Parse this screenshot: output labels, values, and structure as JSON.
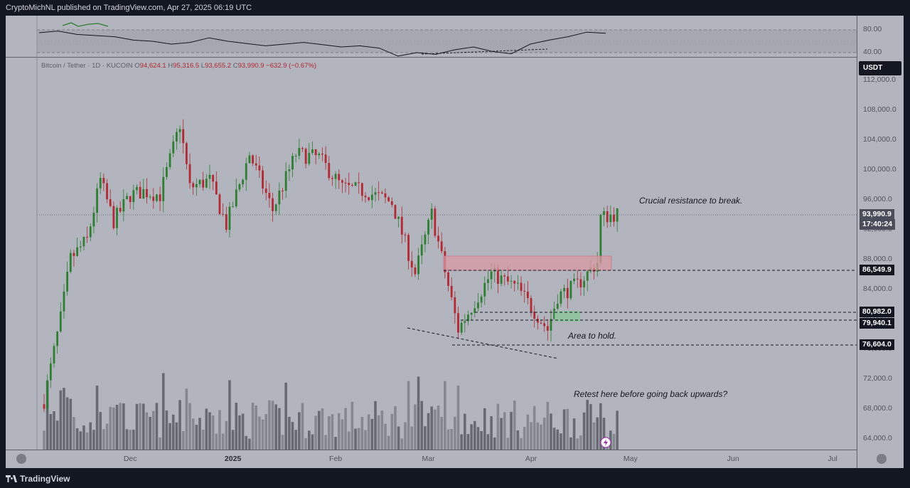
{
  "header": {
    "published": "CryptoMichNL published on TradingView.com, Apr 27, 2025 06:19 UTC"
  },
  "footer": {
    "brand": "TradingView"
  },
  "legend": {
    "symbol": "Bitcoin / Tether · 1D · KUCOIN",
    "o_label": "O",
    "o": "94,624.1",
    "h_label": "H",
    "h": "95,316.5",
    "l_label": "L",
    "l": "93,655.2",
    "c_label": "C",
    "c": "93,990.9",
    "change": "−632.9 (−0.67%)"
  },
  "quote_unit": "USDT",
  "current": {
    "price": "93,990.9",
    "countdown": "17:40:24"
  },
  "levels": [
    {
      "value": "86,549.9"
    },
    {
      "value": "80,982.0"
    },
    {
      "value": "79,940.1"
    },
    {
      "value": "76,604.0"
    }
  ],
  "annotations": {
    "resistance": "Crucial resistance to break.",
    "hold": "Area to hold.",
    "retest": "Retest here before going back upwards?"
  },
  "colors": {
    "up": "#26a69a",
    "down": "#ef5350",
    "candle_up": "#2e7d32",
    "candle_down": "#b22833",
    "resistance_zone": "#e8a0a8",
    "support_zone": "#8fc49a"
  },
  "chart_data": [
    {
      "type": "candlestick",
      "title": "Bitcoin / Tether · 1D · KUCOIN",
      "x_axis": {
        "ticks": [
          "Dec",
          "2025",
          "Feb",
          "Mar",
          "Apr",
          "May",
          "Jun",
          "Jul"
        ]
      },
      "y_axis": {
        "ticks": [
          "64,000.0",
          "68,000.0",
          "72,000.0",
          "76,000.0",
          "80,000.0",
          "84,000.0",
          "88,000.0",
          "92,000.0",
          "96,000.0",
          "100,000.0",
          "104,000.0",
          "108,000.0",
          "112,000.0"
        ],
        "range": [
          62000,
          114000
        ]
      },
      "closes_approx": [
        {
          "x": "2024-11-05",
          "y": 69000
        },
        {
          "x": "2024-11-10",
          "y": 80000
        },
        {
          "x": "2024-11-13",
          "y": 88000
        },
        {
          "x": "2024-11-18",
          "y": 90500
        },
        {
          "x": "2024-11-22",
          "y": 98500
        },
        {
          "x": "2024-11-26",
          "y": 93000
        },
        {
          "x": "2024-12-01",
          "y": 96500
        },
        {
          "x": "2024-12-05",
          "y": 97000
        },
        {
          "x": "2024-12-10",
          "y": 96500
        },
        {
          "x": "2024-12-16",
          "y": 106000
        },
        {
          "x": "2024-12-19",
          "y": 97500
        },
        {
          "x": "2024-12-25",
          "y": 98500
        },
        {
          "x": "2024-12-30",
          "y": 92500
        },
        {
          "x": "2025-01-06",
          "y": 102000
        },
        {
          "x": "2025-01-13",
          "y": 94500
        },
        {
          "x": "2025-01-20",
          "y": 102000
        },
        {
          "x": "2025-01-27",
          "y": 101500
        },
        {
          "x": "2025-02-03",
          "y": 97500
        },
        {
          "x": "2025-02-10",
          "y": 97000
        },
        {
          "x": "2025-02-18",
          "y": 95500
        },
        {
          "x": "2025-02-25",
          "y": 86000
        },
        {
          "x": "2025-03-02",
          "y": 94000
        },
        {
          "x": "2025-03-10",
          "y": 78500
        },
        {
          "x": "2025-03-20",
          "y": 86000
        },
        {
          "x": "2025-03-28",
          "y": 84000
        },
        {
          "x": "2025-04-06",
          "y": 78500
        },
        {
          "x": "2025-04-09",
          "y": 83000
        },
        {
          "x": "2025-04-15",
          "y": 84500
        },
        {
          "x": "2025-04-21",
          "y": 87500
        },
        {
          "x": "2025-04-22",
          "y": 93500
        },
        {
          "x": "2025-04-27",
          "y": 93990.9
        }
      ]
    },
    {
      "type": "line",
      "title": "RSI",
      "y_axis": {
        "ticks": [
          "80.00",
          "40.00"
        ]
      },
      "values_approx": [
        75,
        78,
        72,
        70,
        68,
        62,
        60,
        55,
        58,
        66,
        60,
        56,
        52,
        55,
        58,
        54,
        50,
        52,
        48,
        34,
        40,
        37,
        45,
        50,
        42,
        38,
        55,
        62,
        68,
        76,
        74
      ]
    }
  ]
}
